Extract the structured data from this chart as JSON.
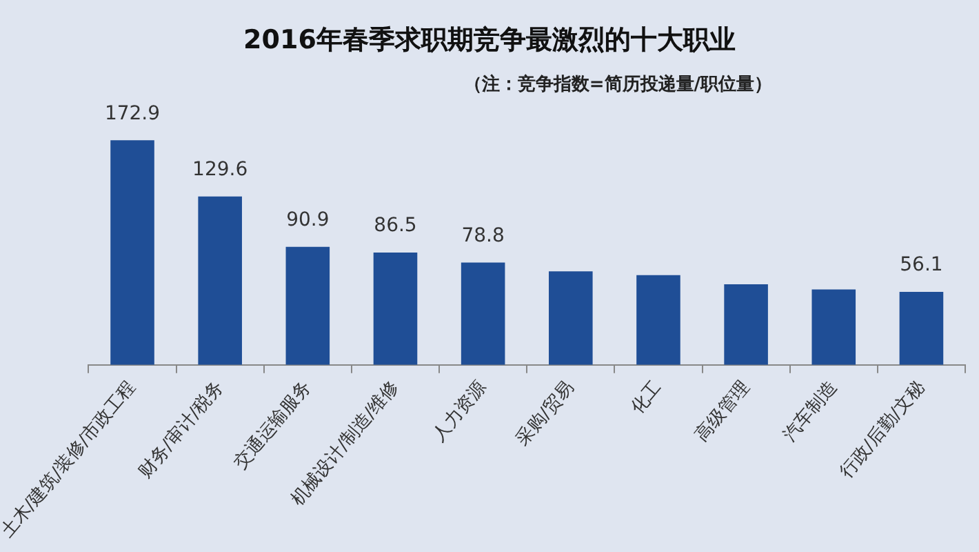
{
  "chart_data": {
    "type": "bar",
    "title": "2016年春季求职期竞争最激烈的十大职业",
    "subtitle": "（注：竞争指数=简历投递量/职位量）",
    "categories": [
      "土木/建筑/装修/市政工程",
      "财务/审计/税务",
      "交通运输服务",
      "机械设计/制造/维修",
      "人力资源",
      "采购/贸易",
      "化工",
      "高级管理",
      "汽车制造",
      "行政/后勤/文秘"
    ],
    "values": [
      172.9,
      129.6,
      90.9,
      86.5,
      78.8,
      72,
      69,
      62,
      58,
      56.1
    ],
    "value_labels": [
      "172.9",
      "129.6",
      "90.9",
      "86.5",
      "78.8",
      null,
      null,
      null,
      null,
      "56.1"
    ],
    "color": "#1f4e96"
  }
}
